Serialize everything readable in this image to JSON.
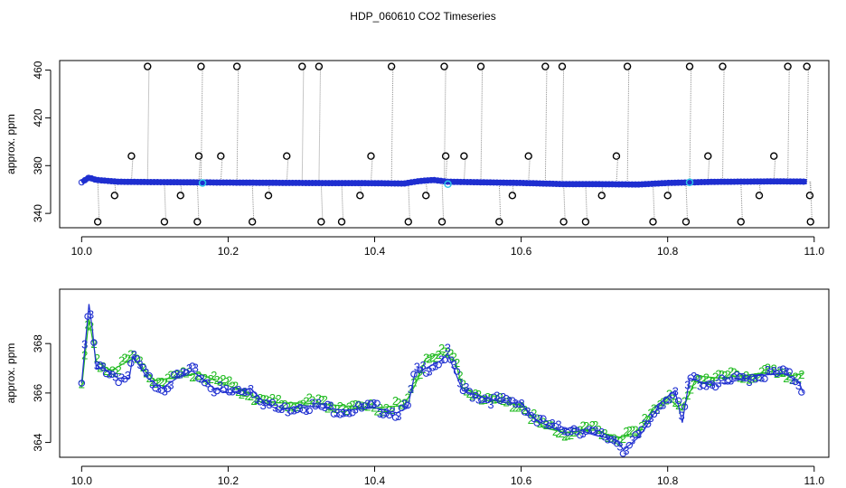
{
  "figure": {
    "title": "HDP_060610  CO2 Timeseries"
  },
  "colors": {
    "background": "#ffffff",
    "series_blue": "#1f2fd0",
    "series_black": "#000000",
    "series_cyan": "#2ec4e6",
    "series_green": "#22bb22",
    "spike_gray": "#909090"
  },
  "chart_data": [
    {
      "type": "scatter",
      "title": "",
      "xlabel": "",
      "ylabel": "approx. ppm",
      "xlim": [
        9.97,
        11.02
      ],
      "ylim": [
        328,
        468
      ],
      "x_ticks": [
        10.0,
        10.2,
        10.4,
        10.6,
        10.8,
        11.0
      ],
      "x_tick_labels": [
        "10.0",
        "10.2",
        "10.4",
        "10.6",
        "10.8",
        "11.0"
      ],
      "y_ticks": [
        340,
        380,
        420,
        460
      ],
      "y_tick_labels": [
        "340",
        "380",
        "420",
        "460"
      ],
      "grid": false,
      "legend": "none",
      "baseline": {
        "color": "blue",
        "x": [
          10.0,
          10.01,
          10.02,
          10.05,
          10.1,
          10.2,
          10.3,
          10.33,
          10.4,
          10.44,
          10.46,
          10.48,
          10.5,
          10.55,
          10.6,
          10.66,
          10.7,
          10.76,
          10.8,
          10.82,
          10.86,
          10.95,
          10.99
        ],
        "y": [
          366,
          370,
          368,
          366.5,
          366.2,
          365.8,
          365.5,
          365.4,
          365.3,
          365.0,
          367,
          368,
          366.5,
          366,
          365.5,
          364.5,
          364.5,
          364.2,
          365.5,
          365.8,
          366.4,
          366.8,
          366.6
        ]
      },
      "spikes_high": {
        "color": "black",
        "x": [
          10.09,
          10.163,
          10.212,
          10.301,
          10.324,
          10.423,
          10.495,
          10.545,
          10.633,
          10.656,
          10.745,
          10.83,
          10.875,
          10.964,
          10.99
        ],
        "y": [
          463,
          463,
          463,
          463,
          463,
          463,
          463,
          463,
          463,
          463,
          463,
          463,
          463,
          463,
          463
        ]
      },
      "spikes_mid": {
        "color": "black",
        "x": [
          10.068,
          10.16,
          10.19,
          10.28,
          10.395,
          10.497,
          10.522,
          10.61,
          10.73,
          10.855,
          10.945
        ],
        "y": [
          388,
          388,
          388,
          388,
          388,
          388,
          388,
          388,
          388,
          388,
          388
        ]
      },
      "spikes_low": {
        "color": "black",
        "x": [
          10.045,
          10.135,
          10.255,
          10.38,
          10.47,
          10.588,
          10.71,
          10.8,
          10.925,
          10.994
        ],
        "y": [
          355,
          355,
          355,
          355,
          355,
          355,
          355,
          355,
          355,
          355
        ]
      },
      "spikes_bottom": {
        "color": "black",
        "x": [
          10.022,
          10.113,
          10.158,
          10.233,
          10.327,
          10.355,
          10.446,
          10.492,
          10.57,
          10.658,
          10.688,
          10.78,
          10.825,
          10.9,
          10.995
        ],
        "y": [
          333,
          333,
          333,
          333,
          333,
          333,
          333,
          333,
          333,
          333,
          333,
          333,
          333,
          333,
          333
        ]
      },
      "cyan_points": {
        "color": "cyan",
        "x": [
          10.165,
          10.5,
          10.83
        ],
        "y": [
          365.5,
          364.5,
          366
        ]
      }
    },
    {
      "type": "line",
      "title": "",
      "xlabel": "",
      "ylabel": "approx. ppm",
      "xlim": [
        9.97,
        11.02
      ],
      "ylim": [
        363.4,
        370.2
      ],
      "x_ticks": [
        10.0,
        10.2,
        10.4,
        10.6,
        10.8,
        11.0
      ],
      "x_tick_labels": [
        "10.0",
        "10.2",
        "10.4",
        "10.6",
        "10.8",
        "11.0"
      ],
      "y_ticks": [
        364,
        366,
        368
      ],
      "y_tick_labels": [
        "364",
        "366",
        "368"
      ],
      "grid": false,
      "legend": "none",
      "point_labels": [
        "2",
        "3"
      ],
      "series": [
        {
          "color": "blue",
          "symbol": "3",
          "x": [
            10.0,
            10.01,
            10.015,
            10.02,
            10.03,
            10.05,
            10.065,
            10.07,
            10.09,
            10.11,
            10.13,
            10.15,
            10.16,
            10.18,
            10.2,
            10.22,
            10.23,
            10.25,
            10.27,
            10.3,
            10.33,
            10.36,
            10.4,
            10.43,
            10.445,
            10.455,
            10.47,
            10.49,
            10.5,
            10.505,
            10.52,
            10.55,
            10.58,
            10.6,
            10.62,
            10.65,
            10.67,
            10.7,
            10.73,
            10.74,
            10.76,
            10.77,
            10.79,
            10.81,
            10.82,
            10.83,
            10.85,
            10.88,
            10.92,
            10.96,
            10.98,
            10.985
          ],
          "y": [
            366.4,
            369.6,
            368.5,
            367,
            367,
            366.6,
            366.6,
            367.5,
            366.6,
            366.2,
            366.6,
            366.9,
            366.7,
            366.2,
            366,
            366.1,
            366.2,
            365.6,
            365.3,
            365.5,
            365.4,
            365.3,
            365.4,
            365.2,
            365.4,
            366.8,
            367.0,
            367.3,
            367.6,
            367.2,
            366.1,
            365.8,
            365.6,
            365.6,
            364.9,
            364.5,
            364.6,
            364.3,
            364.1,
            363.7,
            364.2,
            364.6,
            365.6,
            366.1,
            364.8,
            366.6,
            366.4,
            366.4,
            366.7,
            366.8,
            366.4,
            366.0
          ]
        },
        {
          "color": "green",
          "symbol": "2",
          "x": [
            10.0,
            10.01,
            10.02,
            10.04,
            10.07,
            10.1,
            10.14,
            10.16,
            10.19,
            10.22,
            10.24,
            10.26,
            10.3,
            10.35,
            10.4,
            10.44,
            10.455,
            10.47,
            10.49,
            10.51,
            10.52,
            10.56,
            10.6,
            10.63,
            10.66,
            10.7,
            10.73,
            10.76,
            10.78,
            10.8,
            10.82,
            10.84,
            10.87,
            10.9,
            10.93,
            10.97,
            10.985
          ],
          "y": [
            366.2,
            369,
            367.3,
            366.9,
            367.4,
            366.5,
            366.7,
            366.8,
            366.4,
            366.1,
            365.8,
            365.6,
            365.6,
            365.5,
            365.4,
            365.5,
            366.3,
            367.4,
            367.6,
            367.3,
            366.2,
            365.7,
            365.5,
            364.6,
            364.4,
            364.5,
            364.2,
            364.3,
            365.4,
            365.8,
            365.3,
            366.7,
            366.6,
            366.7,
            366.8,
            366.7,
            366.8
          ]
        }
      ]
    }
  ]
}
